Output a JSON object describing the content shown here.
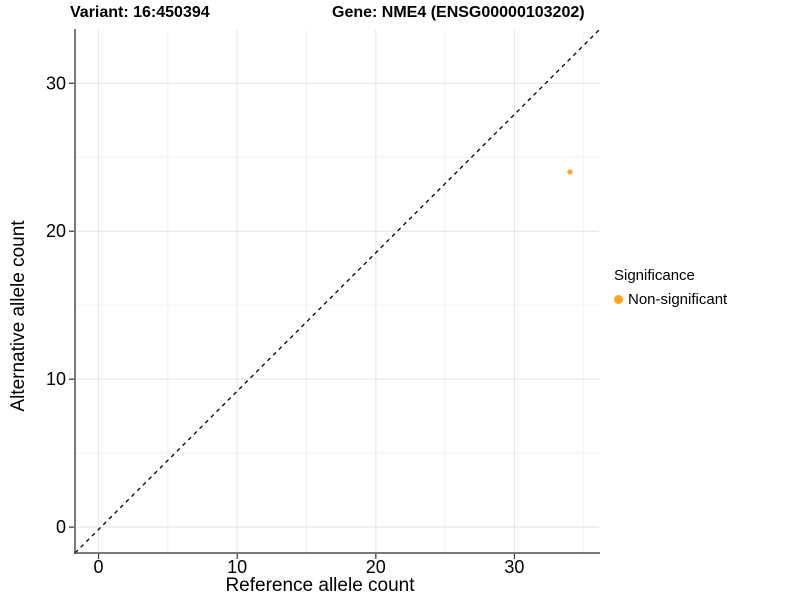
{
  "header": {
    "title_left": "Variant: 16:450394",
    "title_right": "Gene: NME4 (ENSG00000103202)"
  },
  "chart_data": {
    "type": "scatter",
    "title": "Variant: 16:450394  Gene: NME4 (ENSG00000103202)",
    "xlabel": "Reference allele count",
    "ylabel": "Alternative allele count",
    "xlim": [
      -1.7,
      36.1
    ],
    "ylim": [
      -1.75,
      33.6
    ],
    "x_ticks": [
      0,
      10,
      20,
      30
    ],
    "y_ticks": [
      0,
      10,
      20,
      30
    ],
    "x_minor_ticks": [
      5,
      15,
      25,
      35
    ],
    "y_minor_ticks": [
      5,
      15,
      25
    ],
    "grid": "major and minor gridlines on, white background",
    "points": [
      {
        "x": 34,
        "y": 24,
        "series": "Non-significant"
      }
    ],
    "reference_line": {
      "slope": 1,
      "intercept": 0,
      "style": "dashed",
      "color": "#000000",
      "note": "identity line y = x, corner to corner"
    },
    "legend": {
      "title": "Significance",
      "position": "right",
      "items": [
        {
          "label": "Non-significant",
          "color": "#FFA51E",
          "marker": "circle"
        }
      ]
    }
  },
  "colors": {
    "accent_orange": "#FFA51E",
    "grid_major": "#E4E4E4",
    "grid_minor": "#F1F1F1",
    "axis_line": "#4D4D4D",
    "tick_mark": "#333333",
    "text": "#000000",
    "background": "#FFFFFF"
  }
}
